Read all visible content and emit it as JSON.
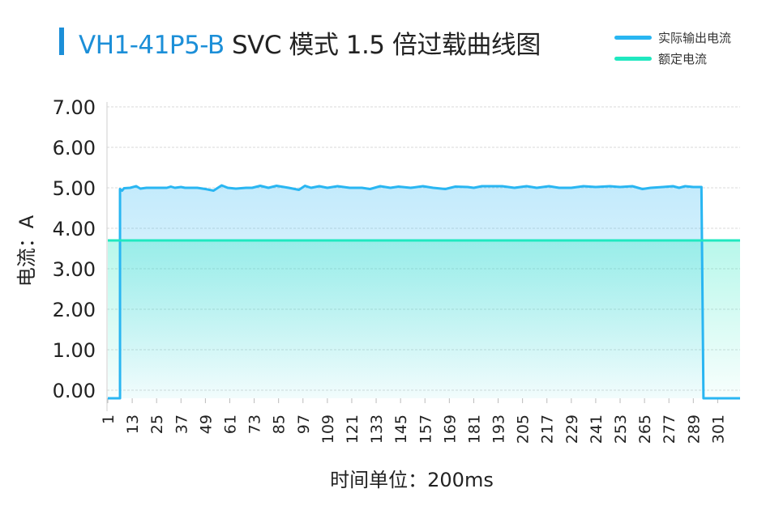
{
  "title": {
    "model": "VH1-41P5-B",
    "rest": " SVC 模式 1.5 倍过载曲线图"
  },
  "colors": {
    "accent": "#1c8fd8",
    "actual": "#29b6f2",
    "rated": "#20e8c0"
  },
  "chart_data": {
    "type": "line",
    "xlabel": "时间单位：200ms",
    "ylabel": "电流：A",
    "ylim": [
      -0.2,
      7.4
    ],
    "yticks": [
      "0.00",
      "1.00",
      "2.00",
      "3.00",
      "4.00",
      "5.00",
      "6.00",
      "7.00"
    ],
    "x_range": [
      1,
      312
    ],
    "xticks": [
      1,
      13,
      25,
      37,
      49,
      61,
      73,
      85,
      97,
      109,
      121,
      133,
      145,
      157,
      169,
      181,
      193,
      205,
      217,
      229,
      241,
      253,
      265,
      277,
      289,
      301
    ],
    "grid": "horizontal",
    "legend_position": "top-right",
    "series": [
      {
        "name": "实际输出电流",
        "color": "#29b6f2",
        "area_fill": true,
        "points": [
          [
            1,
            -0.2
          ],
          [
            7,
            -0.2
          ],
          [
            7,
            4.97
          ],
          [
            8,
            4.93
          ],
          [
            9,
            4.99
          ],
          [
            12,
            5.0
          ],
          [
            15,
            5.04
          ],
          [
            17,
            4.98
          ],
          [
            20,
            5.0
          ],
          [
            30,
            5.0
          ],
          [
            32,
            5.03
          ],
          [
            34,
            5.0
          ],
          [
            37,
            5.02
          ],
          [
            39,
            5.0
          ],
          [
            45,
            5.0
          ],
          [
            49,
            4.97
          ],
          [
            53,
            4.93
          ],
          [
            57,
            5.06
          ],
          [
            60,
            5.0
          ],
          [
            64,
            4.98
          ],
          [
            69,
            5.0
          ],
          [
            72,
            5.0
          ],
          [
            76,
            5.05
          ],
          [
            80,
            5.0
          ],
          [
            84,
            5.05
          ],
          [
            90,
            5.0
          ],
          [
            95,
            4.95
          ],
          [
            98,
            5.05
          ],
          [
            101,
            5.0
          ],
          [
            105,
            5.04
          ],
          [
            109,
            5.0
          ],
          [
            114,
            5.04
          ],
          [
            120,
            5.0
          ],
          [
            126,
            5.0
          ],
          [
            130,
            4.97
          ],
          [
            135,
            5.04
          ],
          [
            140,
            5.0
          ],
          [
            144,
            5.03
          ],
          [
            150,
            5.0
          ],
          [
            156,
            5.04
          ],
          [
            161,
            5.0
          ],
          [
            167,
            4.97
          ],
          [
            172,
            5.03
          ],
          [
            178,
            5.02
          ],
          [
            181,
            5.0
          ],
          [
            185,
            5.04
          ],
          [
            195,
            5.04
          ],
          [
            201,
            5.0
          ],
          [
            207,
            5.04
          ],
          [
            212,
            5.0
          ],
          [
            218,
            5.04
          ],
          [
            223,
            5.0
          ],
          [
            229,
            5.0
          ],
          [
            235,
            5.04
          ],
          [
            241,
            5.02
          ],
          [
            248,
            5.04
          ],
          [
            253,
            5.02
          ],
          [
            259,
            5.04
          ],
          [
            264,
            4.97
          ],
          [
            268,
            5.0
          ],
          [
            274,
            5.02
          ],
          [
            279,
            5.04
          ],
          [
            282,
            5.0
          ],
          [
            285,
            5.04
          ],
          [
            289,
            5.02
          ],
          [
            293,
            5.02
          ],
          [
            294,
            -0.2
          ],
          [
            312,
            -0.2
          ]
        ]
      },
      {
        "name": "额定电流",
        "color": "#20e8c0",
        "area_fill": true,
        "points": [
          [
            1,
            3.7
          ],
          [
            312,
            3.7
          ]
        ]
      }
    ]
  }
}
